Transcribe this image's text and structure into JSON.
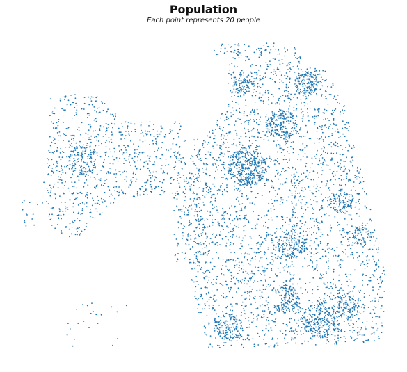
{
  "title": "Population",
  "subtitle": "Each point represents 20 people",
  "colors": {
    "point": "#1f77b4",
    "background": "#ffffff",
    "text": "#111111"
  },
  "chart_data": {
    "type": "scatter",
    "title": "Population",
    "subtitle": "Each point represents 20 people",
    "axes": "off",
    "grid": false,
    "legend": "none",
    "point_represents_people": 20,
    "series": [
      {
        "color": "#1f77b4"
      }
    ]
  }
}
